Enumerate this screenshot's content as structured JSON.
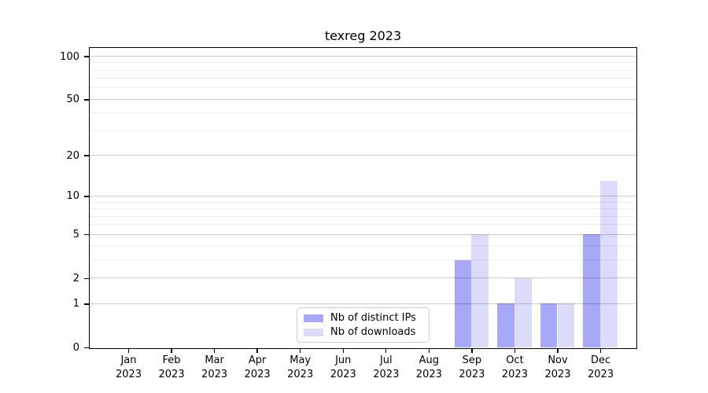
{
  "chart_data": {
    "type": "bar",
    "title": "texreg 2023",
    "months": [
      "Jan",
      "Feb",
      "Mar",
      "Apr",
      "May",
      "Jun",
      "Jul",
      "Aug",
      "Sep",
      "Oct",
      "Nov",
      "Dec"
    ],
    "year_label": "2023",
    "series": [
      {
        "name": "Nb of distinct IPs",
        "color": "#a8a8f8",
        "values": [
          0,
          0,
          0,
          0,
          0,
          0,
          0,
          0,
          3,
          1,
          1,
          5
        ]
      },
      {
        "name": "Nb of downloads",
        "color": "#dcdcfa",
        "values": [
          0,
          0,
          0,
          0,
          0,
          0,
          0,
          0,
          5,
          2,
          1,
          13
        ]
      }
    ],
    "yscale": "log1p",
    "ylim": [
      0,
      116
    ],
    "y_major_ticks": [
      0,
      1,
      2,
      5,
      10,
      20,
      50,
      100
    ],
    "y_minor_gridlines": [
      3,
      4,
      6,
      7,
      8,
      9,
      30,
      40,
      60,
      70,
      80,
      90
    ],
    "grid": true,
    "legend_position": "lower center",
    "xlabel": "",
    "ylabel": ""
  },
  "colors": {
    "bar_distinct_ips": "#a8a8f8",
    "bar_downloads": "#dcdcfa",
    "grid_major": "rgba(0,0,0,0.20)",
    "grid_minor": "rgba(0,0,0,0.065)",
    "spine": "#000000",
    "legend_border": "#cccccc",
    "background": "#ffffff"
  }
}
